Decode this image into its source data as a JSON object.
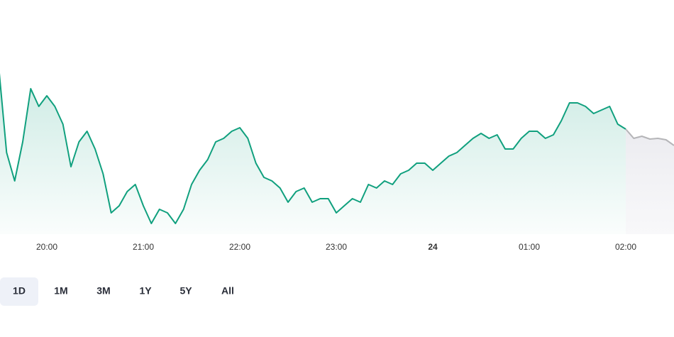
{
  "chart_data": {
    "type": "line",
    "x": [
      "19:30",
      "19:35",
      "19:40",
      "19:45",
      "19:50",
      "19:55",
      "20:00",
      "20:05",
      "20:10",
      "20:15",
      "20:20",
      "20:25",
      "20:30",
      "20:35",
      "20:40",
      "20:45",
      "20:50",
      "20:55",
      "21:00",
      "21:05",
      "21:10",
      "21:15",
      "21:20",
      "21:25",
      "21:30",
      "21:35",
      "21:40",
      "21:45",
      "21:50",
      "21:55",
      "22:00",
      "22:05",
      "22:10",
      "22:15",
      "22:20",
      "22:25",
      "22:30",
      "22:35",
      "22:40",
      "22:45",
      "22:50",
      "22:55",
      "23:00",
      "23:05",
      "23:10",
      "23:15",
      "23:20",
      "23:25",
      "23:30",
      "23:35",
      "23:40",
      "23:45",
      "23:50",
      "23:55",
      "00:00",
      "00:05",
      "00:10",
      "00:15",
      "00:20",
      "00:25",
      "00:30",
      "00:35",
      "00:40",
      "00:45",
      "00:50",
      "00:55",
      "01:00",
      "01:05",
      "01:10",
      "01:15",
      "01:20",
      "01:25",
      "01:30",
      "01:35",
      "01:40",
      "01:45",
      "01:50",
      "01:55",
      "02:00",
      "02:05",
      "02:10",
      "02:15",
      "02:20",
      "02:25",
      "02:30"
    ],
    "series": [
      {
        "color": "#10a07e",
        "values": [
          308,
          185,
          145,
          200,
          275,
          250,
          265,
          250,
          225,
          165,
          200,
          215,
          190,
          155,
          100,
          110,
          130,
          140,
          110,
          85,
          105,
          100,
          85,
          105,
          140,
          160,
          175,
          200,
          205,
          215,
          220,
          205,
          170,
          150,
          145,
          135,
          115,
          130,
          135,
          115,
          120,
          120,
          100,
          110,
          120,
          115,
          140,
          135,
          145,
          140,
          155,
          160,
          170,
          170,
          160,
          170,
          180,
          185,
          195,
          205,
          212,
          205,
          210,
          190,
          190,
          205,
          215,
          215,
          205,
          210,
          230,
          255,
          255,
          250,
          240,
          245,
          250,
          225,
          218,
          null,
          null,
          null,
          null,
          null,
          null
        ]
      },
      {
        "color": "#b5b5b8",
        "values": [
          null,
          null,
          null,
          null,
          null,
          null,
          null,
          null,
          null,
          null,
          null,
          null,
          null,
          null,
          null,
          null,
          null,
          null,
          null,
          null,
          null,
          null,
          null,
          null,
          null,
          null,
          null,
          null,
          null,
          null,
          null,
          null,
          null,
          null,
          null,
          null,
          null,
          null,
          null,
          null,
          null,
          null,
          null,
          null,
          null,
          null,
          null,
          null,
          null,
          null,
          null,
          null,
          null,
          null,
          null,
          null,
          null,
          null,
          null,
          null,
          null,
          null,
          null,
          null,
          null,
          null,
          null,
          null,
          null,
          null,
          null,
          null,
          null,
          null,
          null,
          null,
          null,
          null,
          218,
          205,
          208,
          204,
          205,
          203,
          195
        ]
      }
    ],
    "xticks": [
      "20:00",
      "21:00",
      "22:00",
      "23:00",
      {
        "value": "00:00",
        "label": "24"
      },
      "01:00",
      "02:00"
    ]
  },
  "range_buttons": [
    "1D",
    "1M",
    "3M",
    "1Y",
    "5Y",
    "All"
  ],
  "selected_range": "1D"
}
